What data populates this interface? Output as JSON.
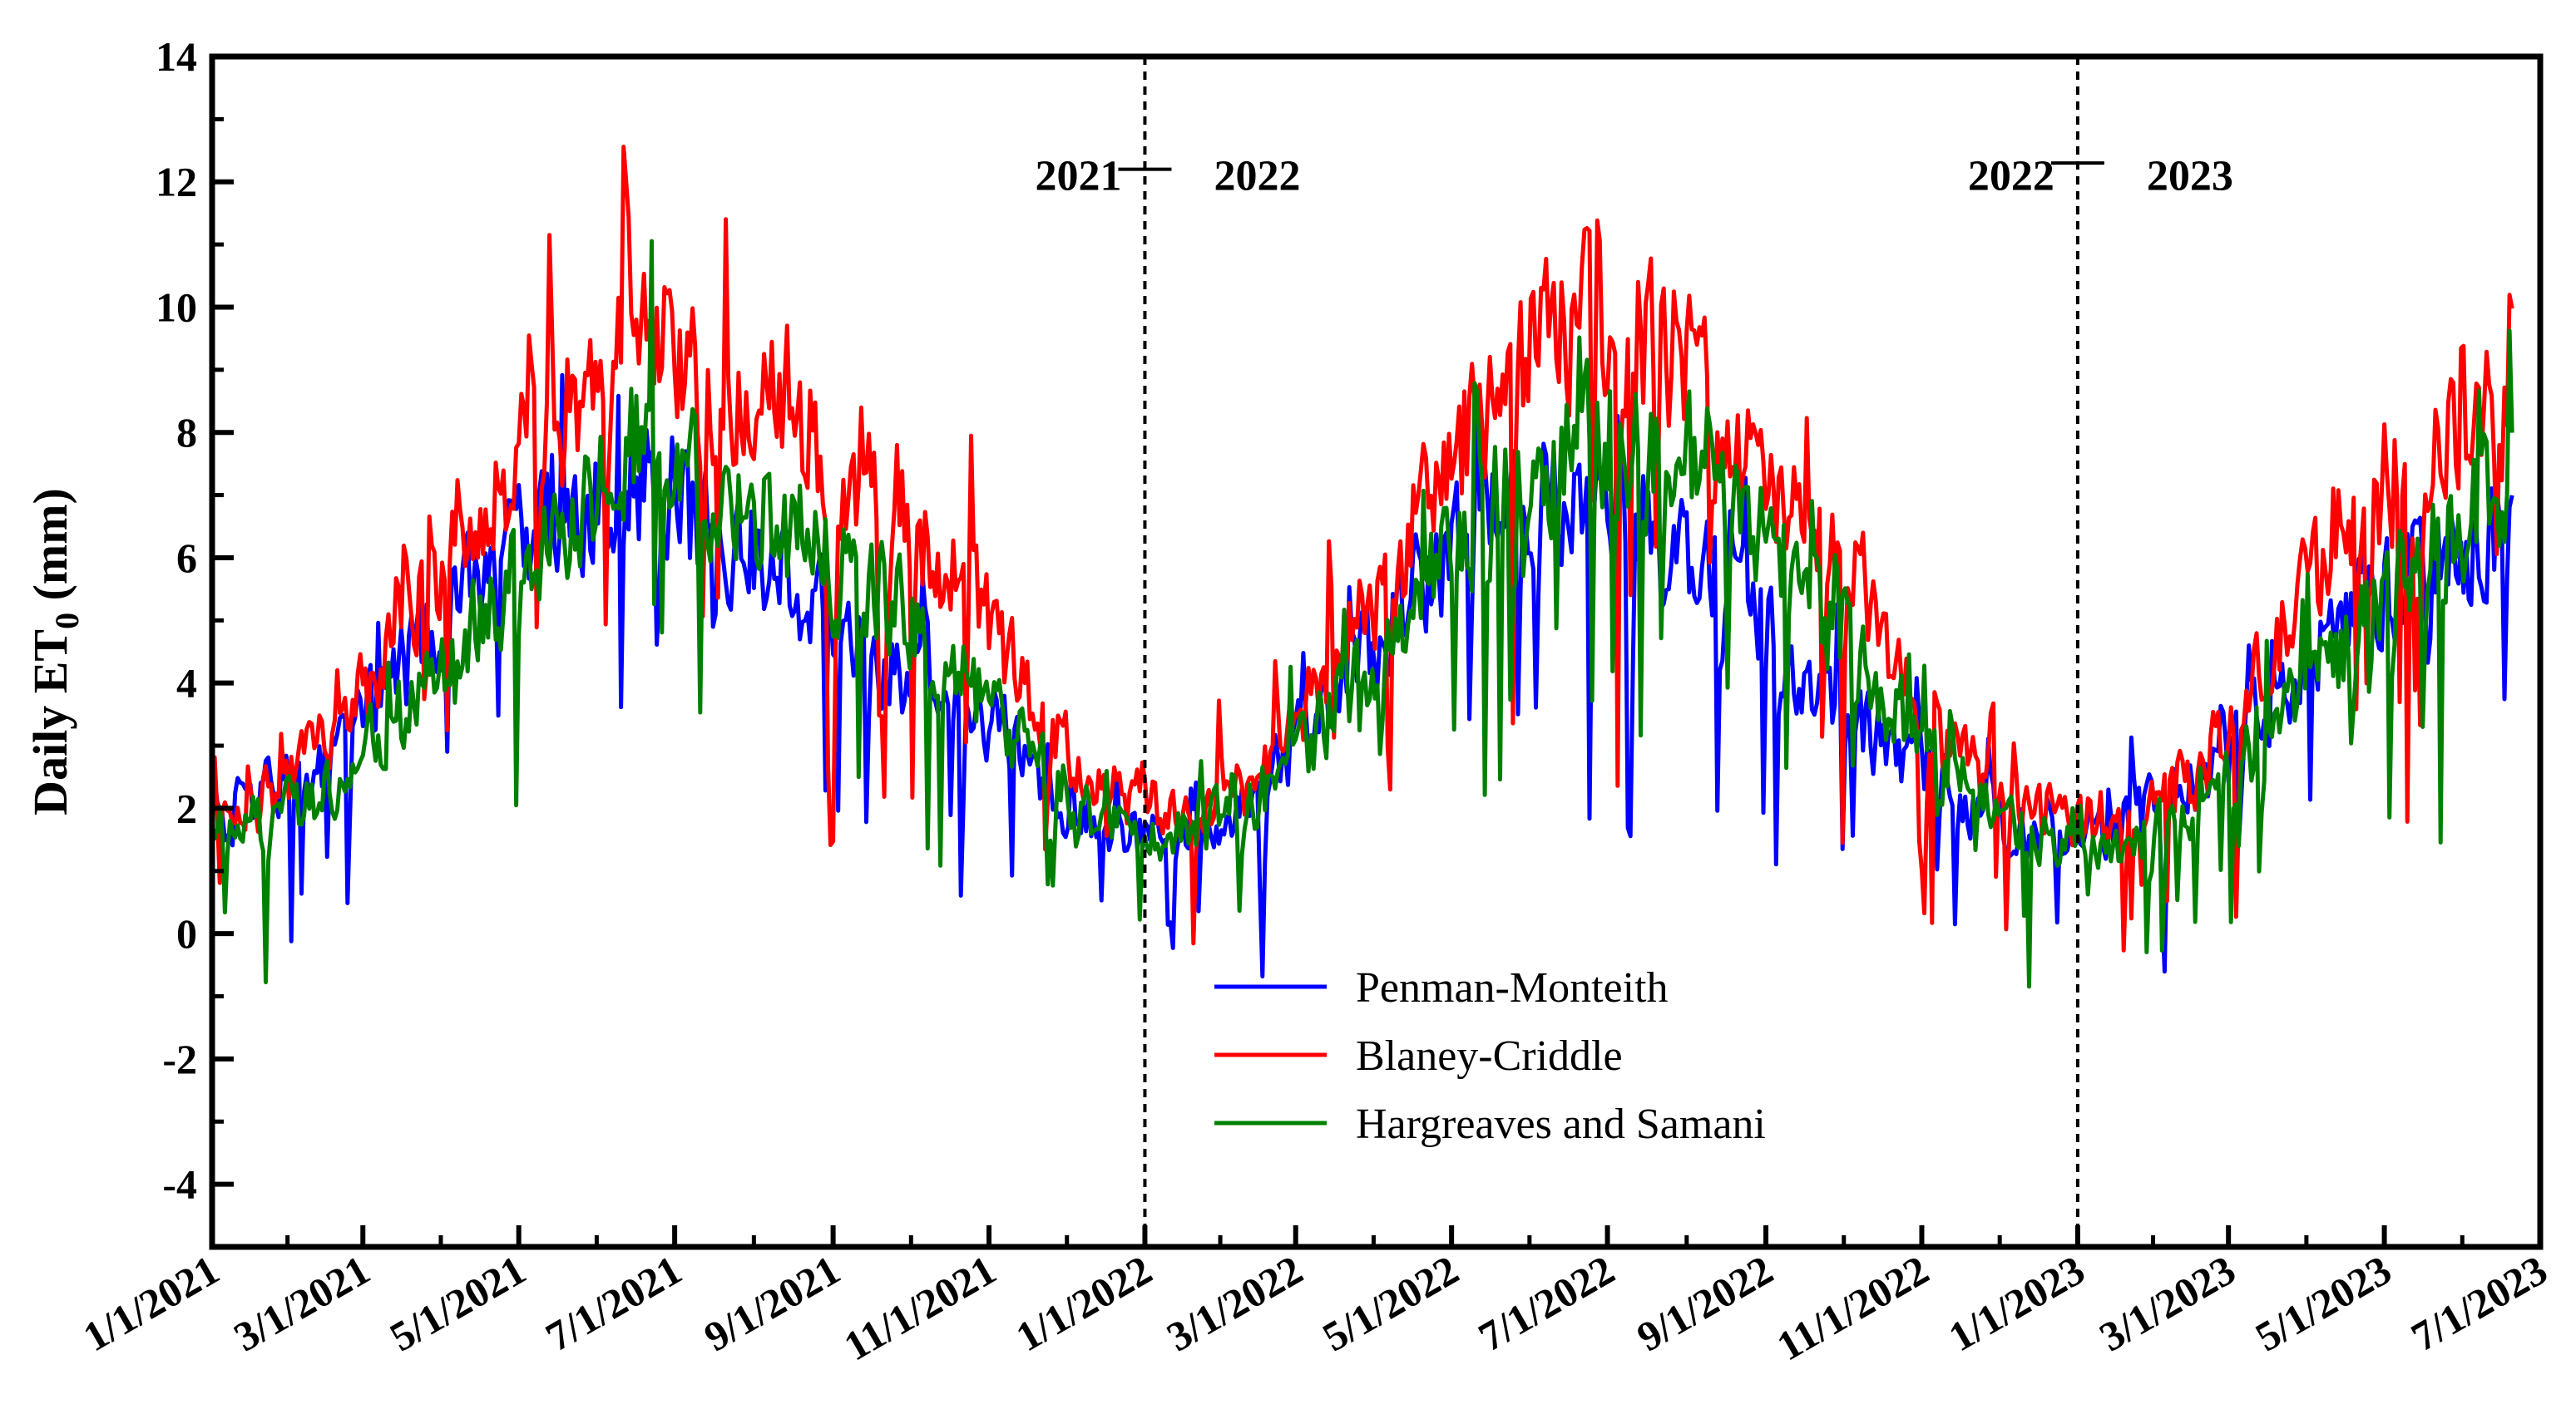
{
  "chart_data": {
    "type": "line",
    "ylabel": "Daily ET",
    "ylabel_subscript": "0",
    "ylabel_unit": " (mm)",
    "xlabel": "",
    "ylim": [
      -5,
      14
    ],
    "yticks": [
      -4,
      -2,
      0,
      2,
      4,
      6,
      8,
      10,
      12,
      14
    ],
    "x_range": [
      "2021-01-01",
      "2023-07-01"
    ],
    "x_end_data": "2023-06-20",
    "xticks": [
      {
        "date": "2021-01-01",
        "label": "1/1/2021"
      },
      {
        "date": "2021-03-01",
        "label": "3/1/2021"
      },
      {
        "date": "2021-05-01",
        "label": "5/1/2021"
      },
      {
        "date": "2021-07-01",
        "label": "7/1/2021"
      },
      {
        "date": "2021-09-01",
        "label": "9/1/2021"
      },
      {
        "date": "2021-11-01",
        "label": "11/1/2021"
      },
      {
        "date": "2022-01-01",
        "label": "1/1/2022"
      },
      {
        "date": "2022-03-01",
        "label": "3/1/2022"
      },
      {
        "date": "2022-05-01",
        "label": "5/1/2022"
      },
      {
        "date": "2022-07-01",
        "label": "7/1/2022"
      },
      {
        "date": "2022-09-01",
        "label": "9/1/2022"
      },
      {
        "date": "2022-11-01",
        "label": "11/1/2022"
      },
      {
        "date": "2023-01-01",
        "label": "1/1/2023"
      },
      {
        "date": "2023-03-01",
        "label": "3/1/2023"
      },
      {
        "date": "2023-05-01",
        "label": "5/1/2023"
      },
      {
        "date": "2023-07-01",
        "label": "7/1/2023"
      }
    ],
    "grid": false,
    "legend_position": "bottom-center",
    "dividers": [
      {
        "date": "2022-01-01",
        "left_label": "2021",
        "right_label": "2022",
        "y": 12.2
      },
      {
        "date": "2023-01-01",
        "left_label": "2022",
        "right_label": "2023",
        "y": 12.3
      }
    ],
    "series": [
      {
        "name": "Penman-Monteith",
        "color": "#0000ff",
        "anchors": [
          [
            "2021-01-01",
            1.8
          ],
          [
            "2021-01-20",
            2.2
          ],
          [
            "2021-02-05",
            2.6
          ],
          [
            "2021-02-20",
            3.0
          ],
          [
            "2021-03-10",
            3.8
          ],
          [
            "2021-04-01",
            5.0
          ],
          [
            "2021-04-20",
            6.0
          ],
          [
            "2021-05-10",
            6.5
          ],
          [
            "2021-06-01",
            6.9
          ],
          [
            "2021-06-15",
            7.3
          ],
          [
            "2021-07-01",
            7.0
          ],
          [
            "2021-07-20",
            6.4
          ],
          [
            "2021-08-10",
            5.9
          ],
          [
            "2021-09-01",
            5.0
          ],
          [
            "2021-09-20",
            4.3
          ],
          [
            "2021-10-10",
            4.1
          ],
          [
            "2021-11-01",
            3.4
          ],
          [
            "2021-11-20",
            2.5
          ],
          [
            "2021-12-10",
            1.8
          ],
          [
            "2022-01-01",
            1.5
          ],
          [
            "2022-01-20",
            1.7
          ],
          [
            "2022-02-10",
            2.1
          ],
          [
            "2022-03-01",
            3.0
          ],
          [
            "2022-03-20",
            4.0
          ],
          [
            "2022-04-10",
            5.2
          ],
          [
            "2022-05-01",
            6.0
          ],
          [
            "2022-05-20",
            6.8
          ],
          [
            "2022-06-10",
            7.0
          ],
          [
            "2022-07-01",
            6.8
          ],
          [
            "2022-07-20",
            6.4
          ],
          [
            "2022-08-10",
            5.9
          ],
          [
            "2022-09-01",
            4.9
          ],
          [
            "2022-09-20",
            4.1
          ],
          [
            "2022-10-10",
            3.3
          ],
          [
            "2022-11-01",
            2.6
          ],
          [
            "2022-11-20",
            2.1
          ],
          [
            "2022-12-10",
            1.6
          ],
          [
            "2023-01-01",
            1.4
          ],
          [
            "2023-01-20",
            1.8
          ],
          [
            "2023-02-10",
            2.3
          ],
          [
            "2023-03-01",
            2.9
          ],
          [
            "2023-03-20",
            3.8
          ],
          [
            "2023-04-10",
            4.9
          ],
          [
            "2023-05-01",
            5.6
          ],
          [
            "2023-05-20",
            6.0
          ],
          [
            "2023-06-20",
            6.2
          ]
        ]
      },
      {
        "name": "Blaney-Criddle",
        "color": "#ff0000",
        "anchors": [
          [
            "2021-01-01",
            1.9
          ],
          [
            "2021-01-20",
            2.1
          ],
          [
            "2021-02-05",
            2.6
          ],
          [
            "2021-02-20",
            3.3
          ],
          [
            "2021-03-10",
            4.3
          ],
          [
            "2021-04-01",
            5.8
          ],
          [
            "2021-04-20",
            7.0
          ],
          [
            "2021-05-10",
            8.0
          ],
          [
            "2021-06-01",
            8.6
          ],
          [
            "2021-06-15",
            10.2
          ],
          [
            "2021-07-01",
            9.0
          ],
          [
            "2021-07-20",
            8.6
          ],
          [
            "2021-08-10",
            8.8
          ],
          [
            "2021-09-01",
            7.5
          ],
          [
            "2021-09-20",
            6.8
          ],
          [
            "2021-10-10",
            6.2
          ],
          [
            "2021-11-01",
            5.0
          ],
          [
            "2021-11-20",
            3.4
          ],
          [
            "2021-12-10",
            2.5
          ],
          [
            "2022-01-01",
            2.0
          ],
          [
            "2022-01-20",
            1.9
          ],
          [
            "2022-02-10",
            2.4
          ],
          [
            "2022-03-01",
            3.3
          ],
          [
            "2022-03-20",
            4.6
          ],
          [
            "2022-04-10",
            6.0
          ],
          [
            "2022-05-01",
            7.6
          ],
          [
            "2022-05-20",
            8.8
          ],
          [
            "2022-06-10",
            9.6
          ],
          [
            "2022-07-01",
            9.9
          ],
          [
            "2022-07-20",
            9.6
          ],
          [
            "2022-08-10",
            8.6
          ],
          [
            "2022-09-01",
            7.0
          ],
          [
            "2022-09-20",
            6.4
          ],
          [
            "2022-10-10",
            5.4
          ],
          [
            "2022-11-01",
            3.2
          ],
          [
            "2022-11-20",
            2.6
          ],
          [
            "2022-12-10",
            2.0
          ],
          [
            "2023-01-01",
            1.8
          ],
          [
            "2023-01-20",
            2.0
          ],
          [
            "2023-02-10",
            2.3
          ],
          [
            "2023-03-01",
            3.2
          ],
          [
            "2023-03-20",
            4.6
          ],
          [
            "2023-04-10",
            6.2
          ],
          [
            "2023-05-01",
            7.2
          ],
          [
            "2023-05-20",
            7.6
          ],
          [
            "2023-06-20",
            8.5
          ]
        ]
      },
      {
        "name": "Hargreaves and Samani",
        "color": "#008000",
        "anchors": [
          [
            "2021-01-01",
            1.6
          ],
          [
            "2021-01-20",
            1.8
          ],
          [
            "2021-02-05",
            2.1
          ],
          [
            "2021-02-20",
            2.5
          ],
          [
            "2021-03-10",
            3.2
          ],
          [
            "2021-04-01",
            4.3
          ],
          [
            "2021-04-20",
            5.3
          ],
          [
            "2021-05-10",
            6.2
          ],
          [
            "2021-06-01",
            7.2
          ],
          [
            "2021-06-15",
            7.9
          ],
          [
            "2021-07-01",
            7.6
          ],
          [
            "2021-07-20",
            6.7
          ],
          [
            "2021-08-10",
            6.5
          ],
          [
            "2021-09-01",
            5.8
          ],
          [
            "2021-09-20",
            5.5
          ],
          [
            "2021-10-10",
            4.5
          ],
          [
            "2021-11-01",
            3.6
          ],
          [
            "2021-11-20",
            2.7
          ],
          [
            "2021-12-10",
            1.9
          ],
          [
            "2022-01-01",
            1.6
          ],
          [
            "2022-01-20",
            1.6
          ],
          [
            "2022-02-10",
            2.0
          ],
          [
            "2022-03-01",
            2.8
          ],
          [
            "2022-03-20",
            3.8
          ],
          [
            "2022-04-10",
            5.0
          ],
          [
            "2022-05-01",
            6.1
          ],
          [
            "2022-05-20",
            7.0
          ],
          [
            "2022-06-10",
            7.7
          ],
          [
            "2022-07-01",
            8.0
          ],
          [
            "2022-07-20",
            7.6
          ],
          [
            "2022-08-10",
            7.5
          ],
          [
            "2022-09-01",
            6.5
          ],
          [
            "2022-09-20",
            5.2
          ],
          [
            "2022-10-10",
            4.2
          ],
          [
            "2022-11-01",
            3.0
          ],
          [
            "2022-11-20",
            2.3
          ],
          [
            "2022-12-10",
            1.7
          ],
          [
            "2023-01-01",
            1.3
          ],
          [
            "2023-01-20",
            1.5
          ],
          [
            "2023-02-10",
            1.8
          ],
          [
            "2023-03-01",
            2.4
          ],
          [
            "2023-03-20",
            3.4
          ],
          [
            "2023-04-10",
            4.4
          ],
          [
            "2023-05-01",
            5.3
          ],
          [
            "2023-05-20",
            6.1
          ],
          [
            "2023-06-20",
            7.3
          ]
        ]
      }
    ]
  }
}
